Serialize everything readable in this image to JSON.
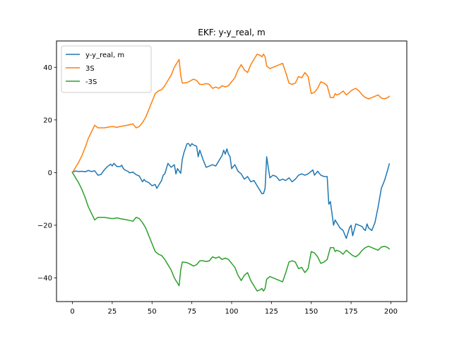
{
  "chart_data": {
    "type": "line",
    "title": "EKF: y-y_real, m",
    "xlabel": "",
    "ylabel": "",
    "xlim": [
      -10,
      210
    ],
    "ylim": [
      -49,
      50
    ],
    "xticks": [
      0,
      25,
      50,
      75,
      100,
      125,
      150,
      175,
      200
    ],
    "yticks": [
      -40,
      -20,
      0,
      20,
      40
    ],
    "grid": false,
    "legend_position": "top-left",
    "series": [
      {
        "name": "y-y_real, m",
        "color": "#1f77b4",
        "x": [
          0,
          2,
          4,
          6,
          8,
          10,
          12,
          14,
          16,
          18,
          19,
          20,
          22,
          24,
          25,
          26,
          28,
          30,
          31,
          32,
          33,
          34,
          35,
          36,
          38,
          40,
          42,
          44,
          45,
          46,
          48,
          50,
          52,
          53,
          54,
          56,
          57,
          58,
          59,
          60,
          62,
          64,
          65,
          66,
          68,
          69,
          70,
          72,
          73,
          74,
          75,
          76,
          78,
          79,
          80,
          82,
          84,
          86,
          88,
          90,
          92,
          94,
          95,
          96,
          97,
          98,
          99,
          100,
          102,
          104,
          106,
          108,
          110,
          112,
          114,
          116,
          118,
          119,
          120,
          121,
          122,
          124,
          126,
          128,
          130,
          132,
          134,
          135,
          136,
          138,
          140,
          142,
          144,
          146,
          148,
          150,
          151,
          152,
          154,
          156,
          158,
          160,
          161,
          162,
          164,
          165,
          166,
          168,
          170,
          172,
          174,
          175,
          176,
          178,
          180,
          182,
          183,
          184,
          185,
          186,
          188,
          190,
          192,
          194,
          196,
          198,
          199
        ],
        "values": [
          0.2,
          0.6,
          0.4,
          0.5,
          0.3,
          0.8,
          0.4,
          0.7,
          -1.0,
          -0.7,
          0.2,
          1.0,
          2.3,
          3.2,
          2.5,
          3.5,
          2.3,
          2.3,
          2.8,
          1.5,
          1.0,
          0.7,
          0.4,
          -0.1,
          0.2,
          -0.8,
          -1.3,
          -3.5,
          -2.6,
          -3.3,
          -3.8,
          -5.0,
          -4.5,
          -6.0,
          -5.0,
          -3.0,
          -1.0,
          -0.5,
          1.5,
          3.5,
          2.0,
          3.0,
          -0.5,
          1.5,
          -0.3,
          5.0,
          7.5,
          11.0,
          11.0,
          10.0,
          11.0,
          10.5,
          10.0,
          6.0,
          8.5,
          5.0,
          2.0,
          2.5,
          3.0,
          2.5,
          4.5,
          6.5,
          8.5,
          7.0,
          9.0,
          7.0,
          6.0,
          1.5,
          3.0,
          0.5,
          -0.5,
          -2.5,
          -1.5,
          -3.5,
          -3.0,
          -5.0,
          -7.0,
          -8.0,
          -8.0,
          -6.0,
          6.0,
          -2.0,
          -1.0,
          -1.5,
          -3.0,
          -2.5,
          -3.0,
          -2.5,
          -2.0,
          -3.5,
          -2.5,
          -1.0,
          -0.5,
          -1.0,
          -0.5,
          0.5,
          1.0,
          -1.0,
          0.5,
          -1.0,
          -1.5,
          -1.5,
          -12.0,
          -11.0,
          -20.0,
          -18.0,
          -19.0,
          -21.0,
          -22.0,
          -25.0,
          -21.0,
          -20.0,
          -24.0,
          -19.5,
          -20.0,
          -20.5,
          -21.5,
          -22.0,
          -19.5,
          -21.0,
          -22.0,
          -19.0,
          -13.0,
          -6.0,
          -3.0,
          1.0,
          3.3
        ]
      },
      {
        "name": "3S",
        "color": "#ff7f0e",
        "x": [
          0,
          2,
          4,
          6,
          8,
          10,
          12,
          14,
          16,
          18,
          19,
          20,
          22,
          25,
          28,
          30,
          33,
          36,
          38,
          40,
          42,
          44,
          46,
          48,
          50,
          52,
          54,
          56,
          58,
          60,
          62,
          64,
          65,
          66,
          67,
          68,
          69,
          70,
          72,
          74,
          76,
          78,
          80,
          82,
          84,
          86,
          88,
          90,
          92,
          94,
          96,
          98,
          100,
          102,
          104,
          106,
          108,
          110,
          112,
          114,
          116,
          118,
          119,
          120,
          121,
          122,
          124,
          126,
          128,
          130,
          132,
          134,
          136,
          138,
          140,
          142,
          144,
          146,
          148,
          150,
          152,
          154,
          156,
          158,
          160,
          162,
          164,
          165,
          166,
          168,
          170,
          172,
          174,
          176,
          178,
          180,
          182,
          184,
          186,
          188,
          190,
          192,
          194,
          196,
          198,
          199
        ],
        "values": [
          0.0,
          2.0,
          4.0,
          6.5,
          9.5,
          13.0,
          15.5,
          18.0,
          17.0,
          17.0,
          17.0,
          17.0,
          17.2,
          17.5,
          17.2,
          17.5,
          17.8,
          18.2,
          18.5,
          17.0,
          17.5,
          19.0,
          21.0,
          24.0,
          27.0,
          30.0,
          31.0,
          31.5,
          33.0,
          35.0,
          37.0,
          40.0,
          41.0,
          42.0,
          43.0,
          37.0,
          34.0,
          34.0,
          34.2,
          34.8,
          35.5,
          35.0,
          33.5,
          33.5,
          33.8,
          33.5,
          32.0,
          32.5,
          32.0,
          33.0,
          32.5,
          33.0,
          34.5,
          36.0,
          39.0,
          41.0,
          39.0,
          38.0,
          41.0,
          43.0,
          45.0,
          44.5,
          44.0,
          45.0,
          44.0,
          40.5,
          39.5,
          40.0,
          40.5,
          41.0,
          41.5,
          38.0,
          34.0,
          33.5,
          34.0,
          36.5,
          36.0,
          38.0,
          36.5,
          30.0,
          30.5,
          32.0,
          34.5,
          34.0,
          33.0,
          28.5,
          28.5,
          30.0,
          29.5,
          30.0,
          31.0,
          29.5,
          30.5,
          31.5,
          32.0,
          31.0,
          29.5,
          28.5,
          28.0,
          28.5,
          29.0,
          29.5,
          28.3,
          28.0,
          28.5,
          29.0
        ]
      },
      {
        "name": "-3S",
        "color": "#2ca02c",
        "x": [
          0,
          2,
          4,
          6,
          8,
          10,
          12,
          14,
          16,
          18,
          19,
          20,
          22,
          25,
          28,
          30,
          33,
          36,
          38,
          40,
          42,
          44,
          46,
          48,
          50,
          52,
          54,
          56,
          58,
          60,
          62,
          64,
          65,
          66,
          67,
          68,
          69,
          70,
          72,
          74,
          76,
          78,
          80,
          82,
          84,
          86,
          88,
          90,
          92,
          94,
          96,
          98,
          100,
          102,
          104,
          106,
          108,
          110,
          112,
          114,
          116,
          118,
          119,
          120,
          121,
          122,
          124,
          126,
          128,
          130,
          132,
          134,
          136,
          138,
          140,
          142,
          144,
          146,
          148,
          150,
          152,
          154,
          156,
          158,
          160,
          162,
          164,
          165,
          166,
          168,
          170,
          172,
          174,
          176,
          178,
          180,
          182,
          184,
          186,
          188,
          190,
          192,
          194,
          196,
          198,
          199
        ],
        "values": [
          0.0,
          -2.0,
          -4.0,
          -6.5,
          -9.5,
          -13.0,
          -15.5,
          -18.0,
          -17.0,
          -17.0,
          -17.0,
          -17.0,
          -17.2,
          -17.5,
          -17.2,
          -17.5,
          -17.8,
          -18.2,
          -18.5,
          -17.0,
          -17.5,
          -19.0,
          -21.0,
          -24.0,
          -27.0,
          -30.0,
          -31.0,
          -31.5,
          -33.0,
          -35.0,
          -37.0,
          -40.0,
          -41.0,
          -42.0,
          -43.0,
          -37.0,
          -34.0,
          -34.0,
          -34.2,
          -34.8,
          -35.5,
          -35.0,
          -33.5,
          -33.5,
          -33.8,
          -33.5,
          -32.0,
          -32.5,
          -32.0,
          -33.0,
          -32.5,
          -33.0,
          -34.5,
          -36.0,
          -39.0,
          -41.0,
          -39.0,
          -38.0,
          -41.0,
          -43.0,
          -45.0,
          -44.5,
          -44.0,
          -45.0,
          -44.0,
          -40.5,
          -39.5,
          -40.0,
          -40.5,
          -41.0,
          -41.5,
          -38.0,
          -34.0,
          -33.5,
          -34.0,
          -36.5,
          -36.0,
          -38.0,
          -36.5,
          -30.0,
          -30.5,
          -32.0,
          -34.5,
          -34.0,
          -33.0,
          -28.5,
          -28.5,
          -30.0,
          -29.5,
          -30.0,
          -31.0,
          -29.5,
          -30.5,
          -31.5,
          -32.0,
          -31.0,
          -29.5,
          -28.5,
          -28.0,
          -28.5,
          -29.0,
          -29.5,
          -28.3,
          -28.0,
          -28.5,
          -29.0
        ]
      }
    ]
  }
}
